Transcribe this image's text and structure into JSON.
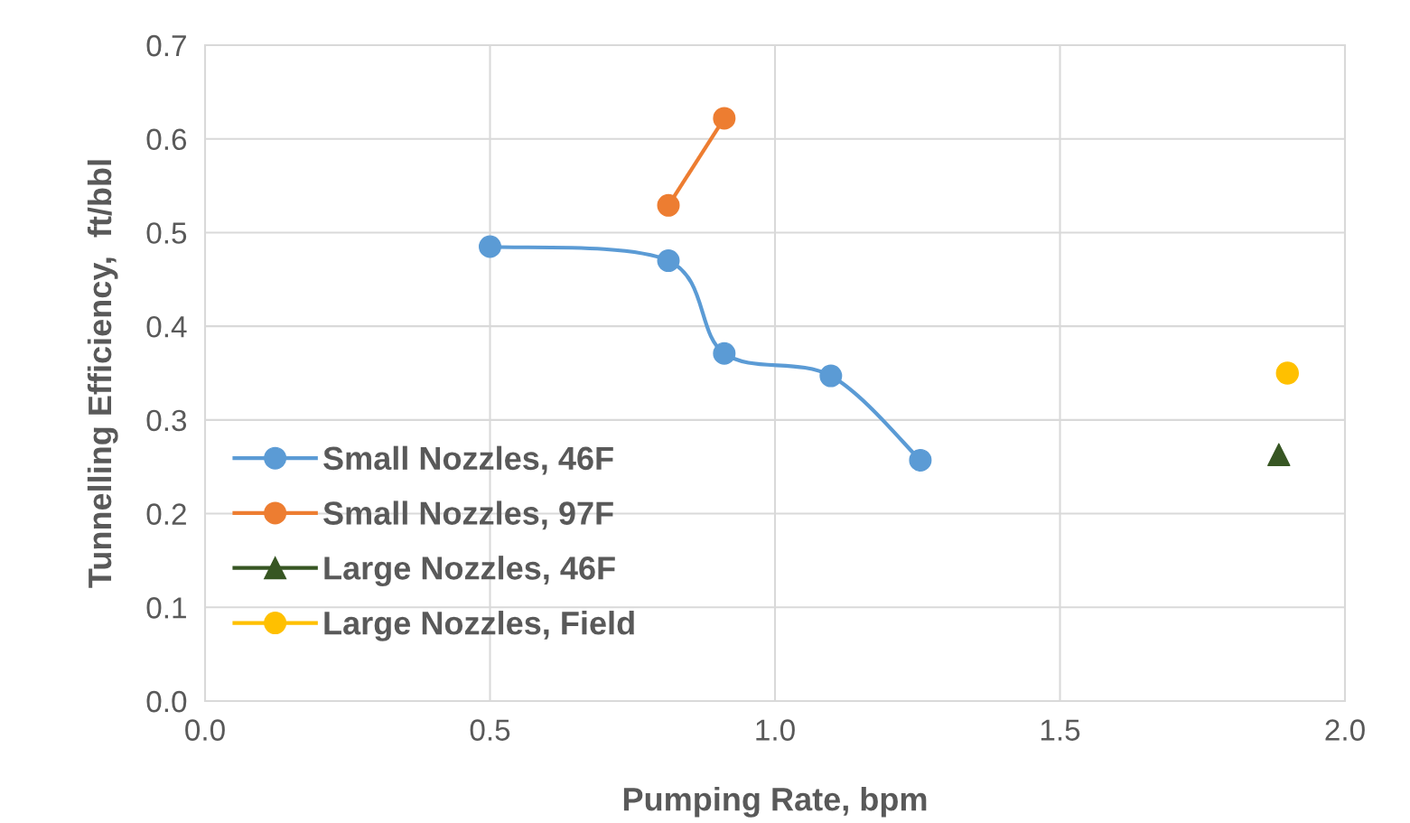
{
  "chart_data": {
    "type": "line",
    "xlabel": "Pumping Rate, bpm",
    "ylabel": "Tunnelling Efficiency,  ft/bbl",
    "xlim": [
      0,
      2
    ],
    "xticks": [
      {
        "value": 0,
        "label": "0.0"
      },
      {
        "value": 0.5,
        "label": "0.5"
      },
      {
        "value": 1,
        "label": "1.0"
      },
      {
        "value": 1.5,
        "label": "1.5"
      },
      {
        "value": 2,
        "label": "2.0"
      }
    ],
    "ylim": [
      0,
      0.7
    ],
    "yticks": [
      {
        "value": 0,
        "label": "0.0"
      },
      {
        "value": 0.1,
        "label": "0.1"
      },
      {
        "value": 0.2,
        "label": "0.2"
      },
      {
        "value": 0.3,
        "label": "0.3"
      },
      {
        "value": 0.4,
        "label": "0.4"
      },
      {
        "value": 0.5,
        "label": "0.5"
      },
      {
        "value": 0.6,
        "label": "0.6"
      },
      {
        "value": 0.7,
        "label": "0.7"
      }
    ],
    "grid": true,
    "legend": "left",
    "marker": "circle",
    "series": [
      {
        "name": "Small Nozzles, 46F",
        "color": "#5b9bd5",
        "x": [
          0.5,
          0.813,
          0.911,
          1.098,
          1.255
        ],
        "values": [
          0.485,
          0.47,
          0.371,
          0.347,
          0.257
        ]
      },
      {
        "name": "Small Nozzles, 97F",
        "color": "#ed7d31",
        "x": [
          0.813,
          0.911
        ],
        "values": [
          0.529,
          0.622
        ]
      },
      {
        "name": "Large Nozzles, 46F",
        "type": "scatter",
        "marker": "triangle",
        "color": "#375623",
        "x": [
          1.884
        ],
        "values": [
          0.263
        ]
      },
      {
        "name": "Large Nozzles, Field",
        "type": "scatter",
        "color": "#ffc000",
        "x": [
          1.899
        ],
        "values": [
          0.35
        ]
      }
    ]
  }
}
